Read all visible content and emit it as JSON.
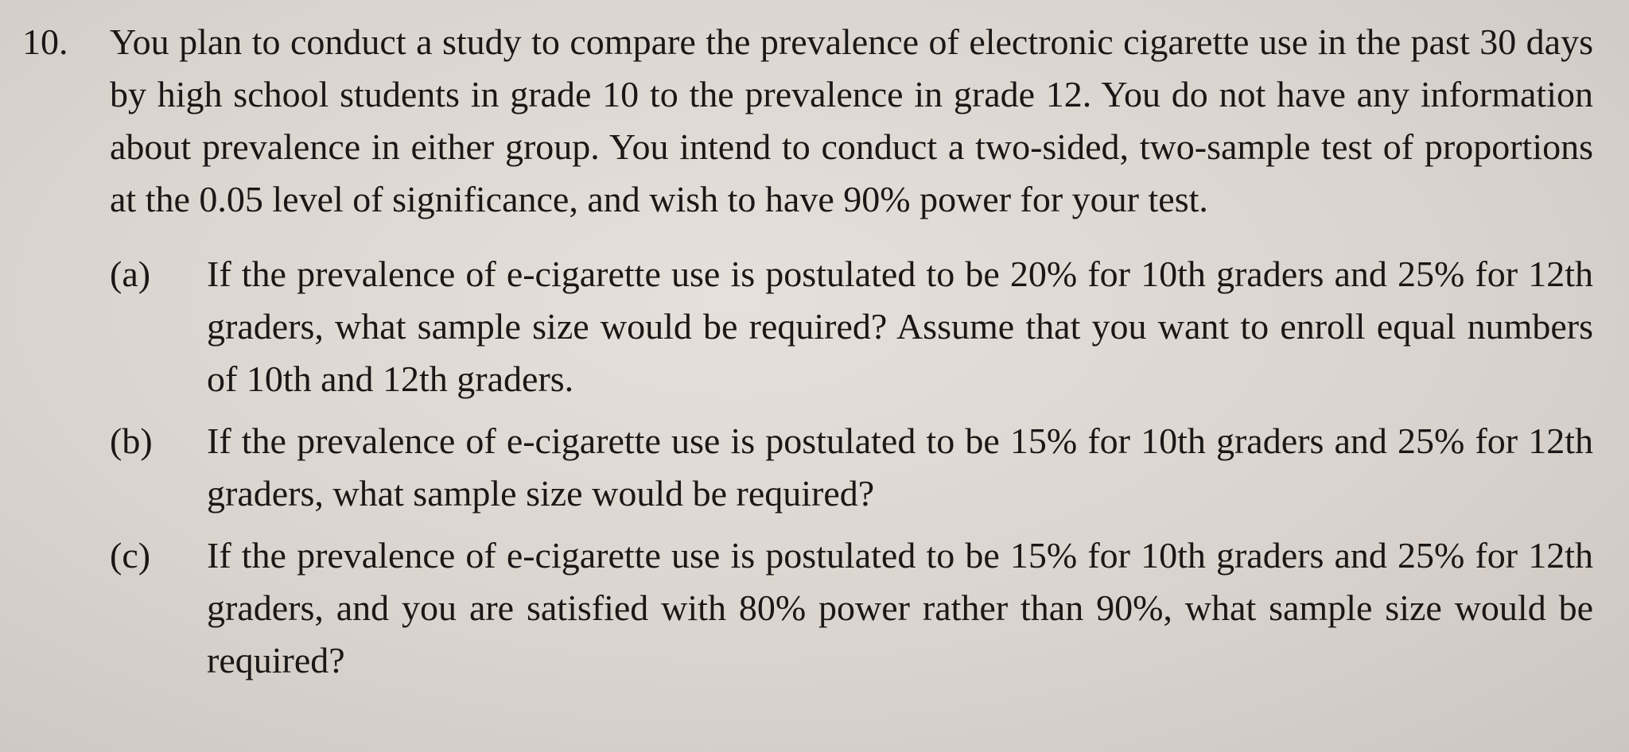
{
  "problem": {
    "number": "10.",
    "text": "You plan to conduct a study to compare the prevalence of electronic cigarette use in the past 30 days by high school students in grade 10 to the prevalence in grade 12. You do not have any information about prevalence in either group. You intend to conduct a two-sided, two-sample test of proportions at the 0.05 level of significance, and wish to have 90% power for your test.",
    "parts": [
      {
        "label": "(a)",
        "text": "If the prevalence of e-cigarette use is postulated to be 20% for 10th graders and 25% for 12th graders, what sample size would be required? Assume that you want to enroll equal numbers of 10th and 12th graders."
      },
      {
        "label": "(b)",
        "text": "If the prevalence of e-cigarette use is postulated to be 15% for 10th graders and 25% for 12th graders, what sample size would be required?"
      },
      {
        "label": "(c)",
        "text": "If the prevalence of e-cigarette use is postulated to be 15% for 10th graders and 25% for 12th graders, and you are satisfied with 80% power rather than 90%, what sample size would be required?"
      }
    ]
  }
}
